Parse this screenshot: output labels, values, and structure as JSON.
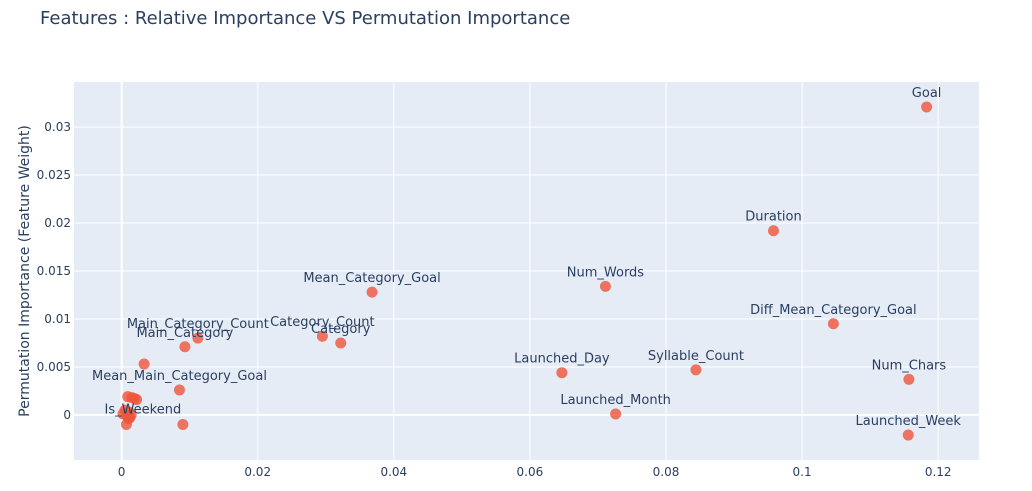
{
  "chart_data": {
    "type": "scatter",
    "title": "Features : Relative Importance VS Permutation Importance",
    "xlabel": "",
    "ylabel": "Permutation Importance (Feature Weight)",
    "xlim": [
      -0.007,
      0.126
    ],
    "ylim": [
      -0.0047,
      0.0347
    ],
    "xticks": [
      0,
      0.02,
      0.04,
      0.06,
      0.08,
      0.1,
      0.12
    ],
    "xtick_labels": [
      "0",
      "0.02",
      "0.04",
      "0.06",
      "0.08",
      "0.1",
      "0.12"
    ],
    "yticks": [
      0,
      0.005,
      0.01,
      0.015,
      0.02,
      0.025,
      0.03
    ],
    "ytick_labels": [
      "0",
      "0.005",
      "0.01",
      "0.015",
      "0.02",
      "0.025",
      "0.03"
    ],
    "grid": true,
    "marker_color": "#ef553b",
    "background": "#e5ecf6",
    "points": [
      {
        "label": "Goal",
        "x": 0.1183,
        "y": 0.0321
      },
      {
        "label": "Duration",
        "x": 0.0958,
        "y": 0.0192
      },
      {
        "label": "Mean_Category_Goal",
        "x": 0.0368,
        "y": 0.0128
      },
      {
        "label": "Num_Words",
        "x": 0.0711,
        "y": 0.0134
      },
      {
        "label": "Diff_Mean_Category_Goal",
        "x": 0.1046,
        "y": 0.0095
      },
      {
        "label": "Main_Category_Count",
        "x": 0.0112,
        "y": 0.008
      },
      {
        "label": "Main_Category",
        "x": 0.0093,
        "y": 0.0071
      },
      {
        "label": "Category_Count",
        "x": 0.0295,
        "y": 0.0082
      },
      {
        "label": "Category",
        "x": 0.0322,
        "y": 0.0075
      },
      {
        "label": "Launched_Day",
        "x": 0.0647,
        "y": 0.0044
      },
      {
        "label": "Syllable_Count",
        "x": 0.0844,
        "y": 0.0047
      },
      {
        "label": "Num_Chars",
        "x": 0.1157,
        "y": 0.0037
      },
      {
        "label": "Mean_Main_Category_Goal",
        "x": 0.0085,
        "y": 0.0026
      },
      {
        "label": "Launched_Month",
        "x": 0.0726,
        "y": 0.0001
      },
      {
        "label": "Is_Weekend",
        "x": 0.009,
        "y": -0.001
      },
      {
        "label": "Launched_Week",
        "x": 0.1156,
        "y": -0.0021
      },
      {
        "label": "",
        "x": 0.0033,
        "y": 0.0053
      },
      {
        "label": "",
        "x": 0.0009,
        "y": 0.0019
      },
      {
        "label": "",
        "x": 0.0015,
        "y": 0.0018
      },
      {
        "label": "",
        "x": 0.0019,
        "y": 0.0017
      },
      {
        "label": "",
        "x": 0.0022,
        "y": 0.0016
      },
      {
        "label": "",
        "x": 0.0005,
        "y": 0.0005
      },
      {
        "label": "",
        "x": 0.0011,
        "y": 0.0003
      },
      {
        "label": "",
        "x": 0.0002,
        "y": 0.0001
      },
      {
        "label": "",
        "x": 0.0014,
        "y": 0.0
      },
      {
        "label": "",
        "x": 0.0008,
        "y": -0.0001
      },
      {
        "label": "",
        "x": 0.0012,
        "y": -0.0003
      },
      {
        "label": "",
        "x": 0.001,
        "y": -0.0004
      },
      {
        "label": "",
        "x": 0.0007,
        "y": -0.001
      }
    ]
  }
}
